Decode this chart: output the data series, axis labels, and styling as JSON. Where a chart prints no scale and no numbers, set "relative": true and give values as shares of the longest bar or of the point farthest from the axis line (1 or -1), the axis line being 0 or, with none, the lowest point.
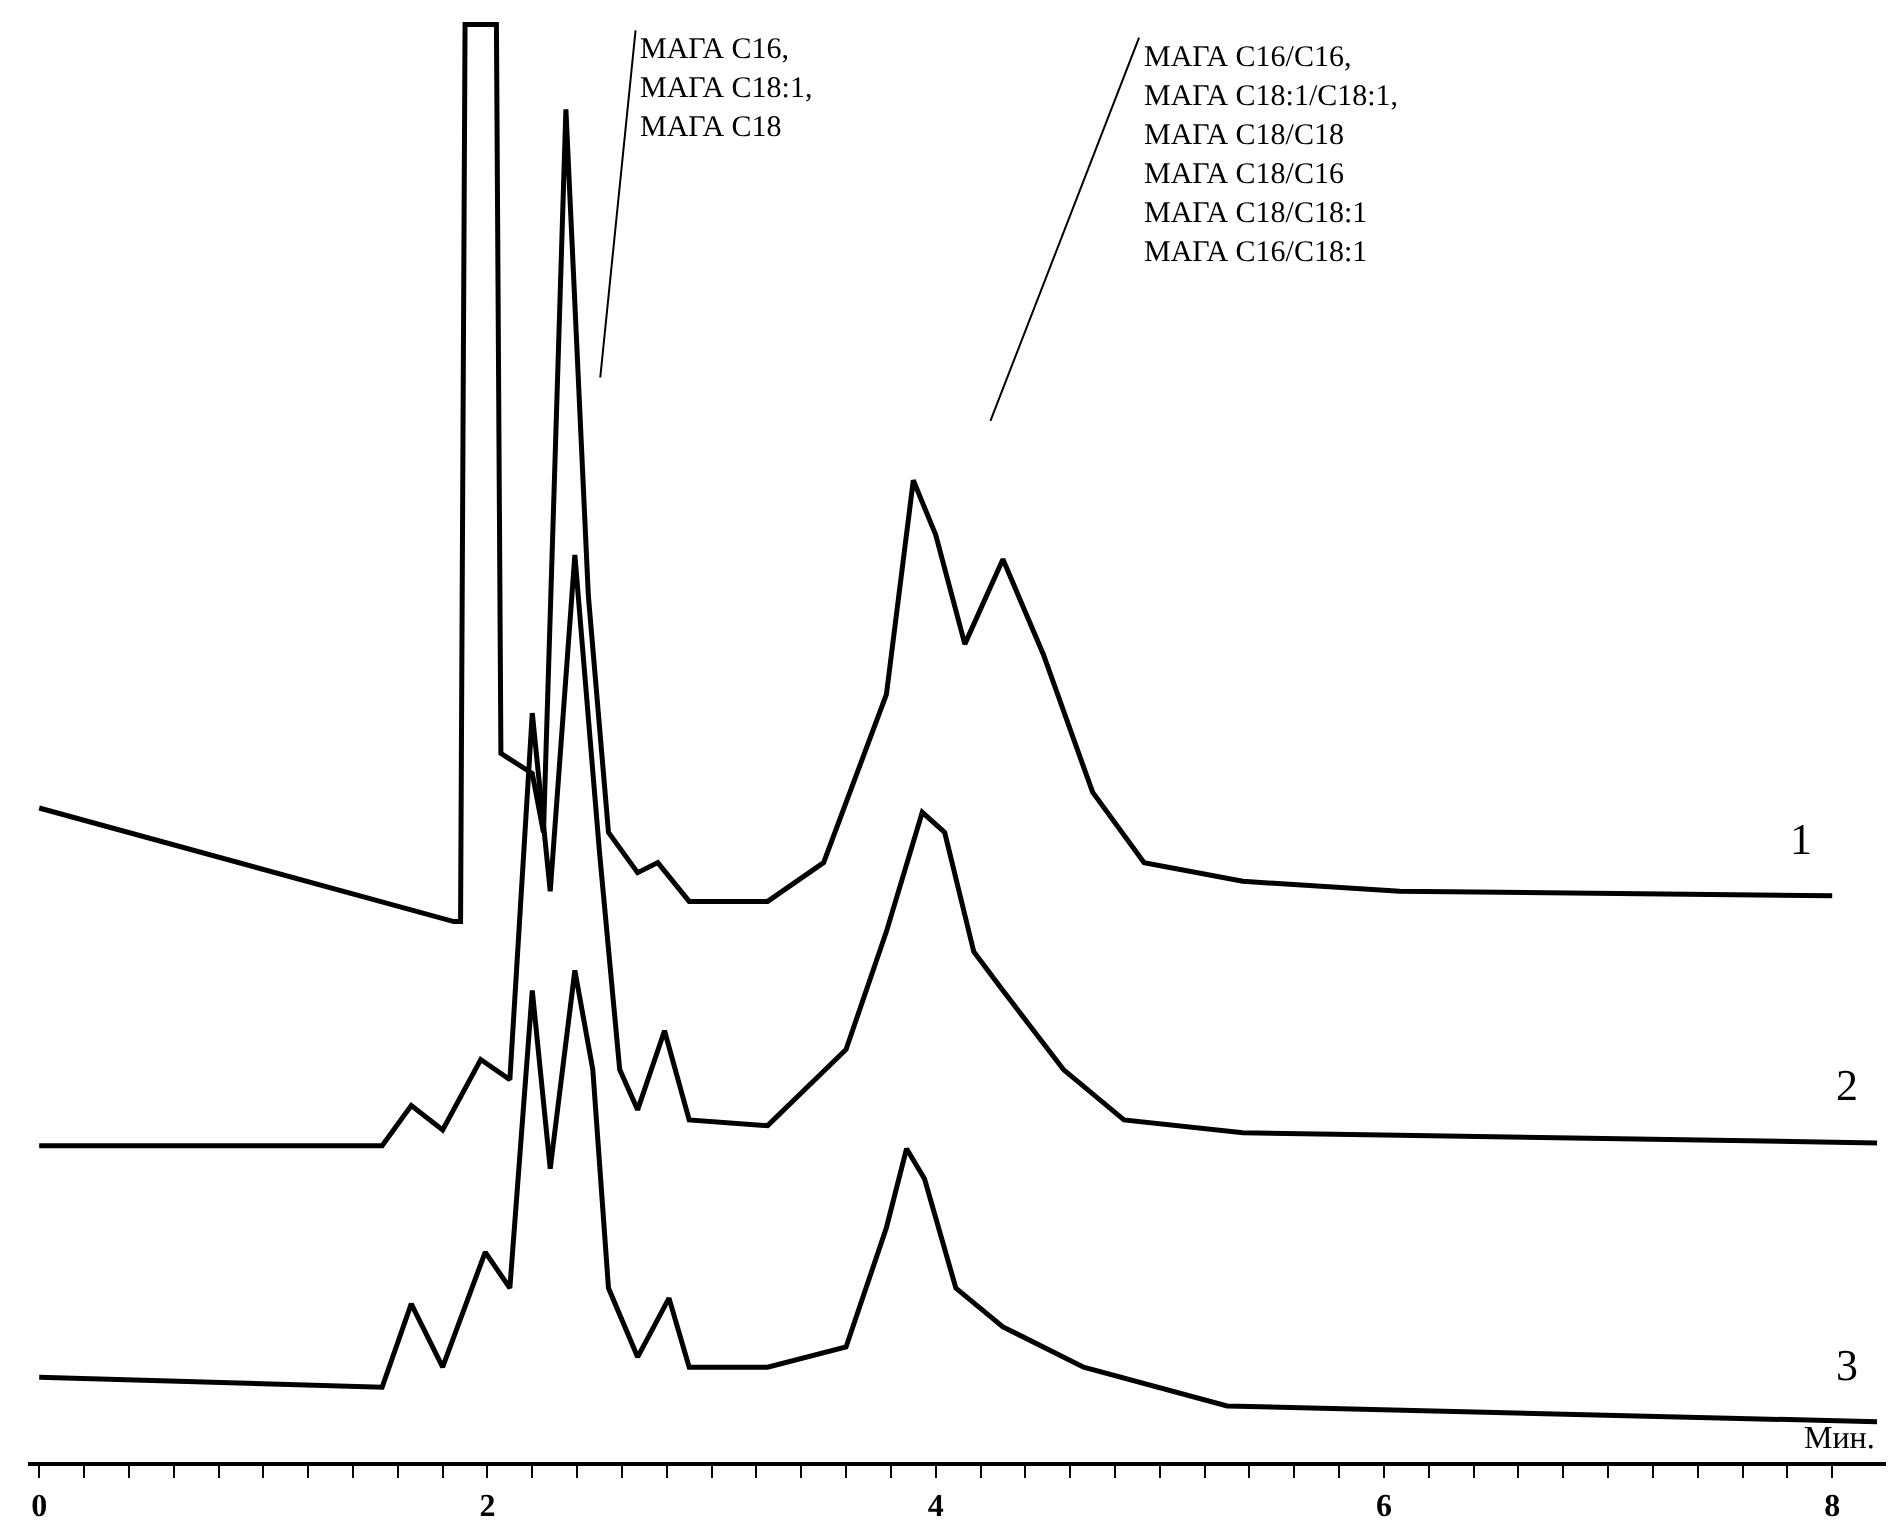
{
  "chart_data": {
    "type": "line",
    "relative": true,
    "xlabel": "Мин.",
    "xlim": [
      -0.05,
      8.24
    ],
    "xticks": [
      0,
      {
        "value": 0.2,
        "label": null
      },
      {
        "value": 0.4,
        "label": null
      },
      {
        "value": 0.6,
        "label": null
      },
      {
        "value": 0.8,
        "label": null
      },
      {
        "value": 1,
        "label": null
      },
      {
        "value": 1.2,
        "label": null
      },
      {
        "value": 1.4,
        "label": null
      },
      {
        "value": 1.6,
        "label": null
      },
      {
        "value": 1.8,
        "label": null
      },
      2,
      {
        "value": 2.2,
        "label": null
      },
      {
        "value": 2.4,
        "label": null
      },
      {
        "value": 2.6,
        "label": null
      },
      {
        "value": 2.8,
        "label": null
      },
      {
        "value": 3,
        "label": null
      },
      {
        "value": 3.2,
        "label": null
      },
      {
        "value": 3.4,
        "label": null
      },
      {
        "value": 3.6,
        "label": null
      },
      {
        "value": 3.8,
        "label": null
      },
      4,
      {
        "value": 4.2,
        "label": null
      },
      {
        "value": 4.4,
        "label": null
      },
      {
        "value": 4.6,
        "label": null
      },
      {
        "value": 4.8,
        "label": null
      },
      {
        "value": 5,
        "label": null
      },
      {
        "value": 5.2,
        "label": null
      },
      {
        "value": 5.4,
        "label": null
      },
      {
        "value": 5.6,
        "label": null
      },
      {
        "value": 5.8,
        "label": null
      },
      6,
      {
        "value": 6.2,
        "label": null
      },
      {
        "value": 6.4,
        "label": null
      },
      {
        "value": 6.6,
        "label": null
      },
      {
        "value": 6.8,
        "label": null
      },
      {
        "value": 7,
        "label": null
      },
      {
        "value": 7.2,
        "label": null
      },
      {
        "value": 7.4,
        "label": null
      },
      {
        "value": 7.6,
        "label": null
      },
      {
        "value": 7.8,
        "label": null
      },
      8
    ],
    "tick_labels": "x",
    "grid": false,
    "legend": false,
    "marker": "none",
    "line_style": "solid",
    "series": [
      {
        "name": "1",
        "color": "#000000",
        "x": [
          0,
          1.85,
          1.88,
          1.9,
          2.04,
          2.06,
          2.2,
          2.25,
          2.35,
          2.45,
          2.54,
          2.67,
          2.76,
          2.9,
          3.25,
          3.5,
          3.78,
          3.9,
          4.0,
          4.13,
          4.3,
          4.48,
          4.7,
          4.93,
          5.37,
          6.07,
          8.0
        ],
        "values": [
          0.455,
          0.376,
          0.376,
          1.0,
          1.0,
          0.493,
          0.479,
          0.438,
          0.941,
          0.603,
          0.438,
          0.41,
          0.417,
          0.39,
          0.39,
          0.417,
          0.534,
          0.683,
          0.645,
          0.569,
          0.628,
          0.562,
          0.466,
          0.417,
          0.404,
          0.397,
          0.394
        ]
      },
      {
        "name": "2",
        "color": "#000000",
        "x": [
          0,
          1.53,
          1.66,
          1.8,
          1.97,
          2.1,
          2.2,
          2.28,
          2.39,
          2.5,
          2.59,
          2.67,
          2.79,
          2.9,
          3.25,
          3.6,
          3.78,
          3.94,
          4.04,
          4.17,
          4.3,
          4.57,
          4.84,
          5.37,
          8.2
        ],
        "values": [
          0.22,
          0.22,
          0.248,
          0.231,
          0.28,
          0.266,
          0.521,
          0.397,
          0.631,
          0.424,
          0.273,
          0.245,
          0.3,
          0.238,
          0.234,
          0.287,
          0.369,
          0.452,
          0.438,
          0.355,
          0.328,
          0.273,
          0.238,
          0.229,
          0.222
        ]
      },
      {
        "name": "3",
        "color": "#000000",
        "x": [
          0,
          1.53,
          1.66,
          1.8,
          1.99,
          2.1,
          2.2,
          2.28,
          2.39,
          2.47,
          2.54,
          2.67,
          2.81,
          2.9,
          3.25,
          3.6,
          3.78,
          3.87,
          3.95,
          4.09,
          4.3,
          4.66,
          5.3,
          8.2
        ],
        "values": [
          0.059,
          0.052,
          0.11,
          0.066,
          0.146,
          0.121,
          0.328,
          0.204,
          0.342,
          0.273,
          0.121,
          0.073,
          0.114,
          0.066,
          0.066,
          0.08,
          0.163,
          0.218,
          0.197,
          0.121,
          0.094,
          0.066,
          0.039,
          0.028
        ]
      }
    ],
    "annotations": [
      "МАГА С16,\nМАГА С18:1,\nМАГА С18",
      "МАГА С16/С16,\nМАГА С18:1/С18:1,\nМАГА С18/С18\nМАГА С18/С16\nМАГА С18/С18:1\nМАГА С16/С18:1"
    ]
  }
}
